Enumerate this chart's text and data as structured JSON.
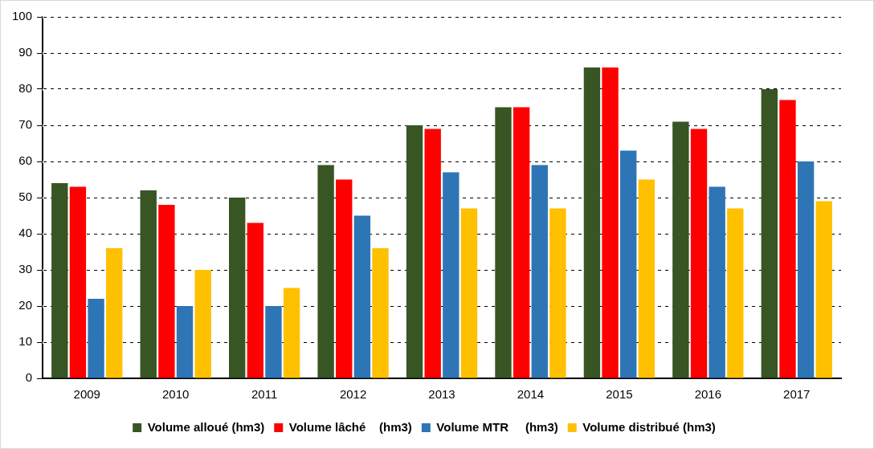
{
  "chart_data": {
    "type": "bar",
    "categories": [
      "2009",
      "2010",
      "2011",
      "2012",
      "2013",
      "2014",
      "2015",
      "2016",
      "2017"
    ],
    "series": [
      {
        "name": "Volume alloué (hm3)",
        "color": "#375623",
        "values": [
          54,
          52,
          50,
          59,
          70,
          75,
          86,
          71,
          80
        ]
      },
      {
        "name": "Volume lâché    (hm3)",
        "color": "#ff0000",
        "values": [
          53,
          48,
          43,
          55,
          69,
          75,
          86,
          69,
          77
        ]
      },
      {
        "name": "Volume MTR     (hm3)",
        "color": "#2e75b6",
        "values": [
          22,
          20,
          20,
          45,
          57,
          59,
          63,
          53,
          60
        ]
      },
      {
        "name": "Volume distribué (hm3)",
        "color": "#ffc000",
        "values": [
          36,
          30,
          25,
          36,
          47,
          47,
          55,
          47,
          49
        ]
      }
    ],
    "ylim": [
      0,
      100
    ],
    "yticks": [
      0,
      10,
      20,
      30,
      40,
      50,
      60,
      70,
      80,
      90,
      100
    ],
    "grid": "y",
    "legend": "bottom"
  }
}
